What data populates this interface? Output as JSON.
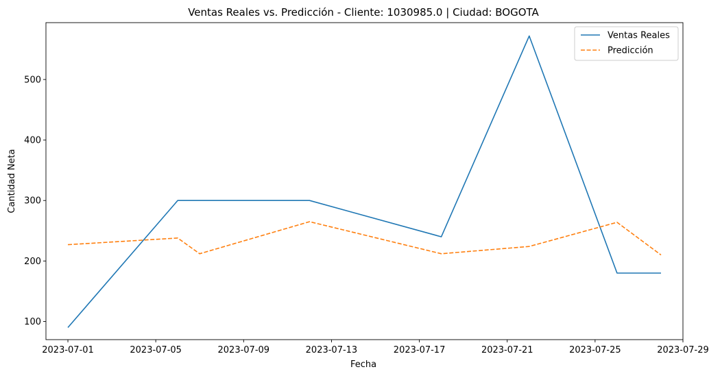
{
  "chart_data": {
    "type": "line",
    "title": "Ventas Reales vs. Predicción - Cliente: 1030985.0 | Ciudad: BOGOTA",
    "xlabel": "Fecha",
    "ylabel": "Cantidad Neta",
    "xlim": [
      "2023-06-30",
      "2023-07-29"
    ],
    "ylim": [
      70,
      594
    ],
    "x_ticks": [
      "2023-07-01",
      "2023-07-05",
      "2023-07-09",
      "2023-07-13",
      "2023-07-17",
      "2023-07-21",
      "2023-07-25",
      "2023-07-29"
    ],
    "y_ticks": [
      100,
      200,
      300,
      400,
      500
    ],
    "legend": "top-right",
    "grid": false,
    "series": [
      {
        "name": "Ventas Reales",
        "color": "#1f77b4",
        "dash": "solid",
        "points": [
          {
            "x": "2023-07-01",
            "y": 90
          },
          {
            "x": "2023-07-06",
            "y": 300
          },
          {
            "x": "2023-07-12",
            "y": 300
          },
          {
            "x": "2023-07-18",
            "y": 240
          },
          {
            "x": "2023-07-22",
            "y": 572
          },
          {
            "x": "2023-07-26",
            "y": 180
          },
          {
            "x": "2023-07-28",
            "y": 180
          }
        ]
      },
      {
        "name": "Predicción",
        "color": "#ff7f0e",
        "dash": "dashed",
        "points": [
          {
            "x": "2023-07-01",
            "y": 227
          },
          {
            "x": "2023-07-06",
            "y": 238
          },
          {
            "x": "2023-07-07",
            "y": 212
          },
          {
            "x": "2023-07-12",
            "y": 265
          },
          {
            "x": "2023-07-18",
            "y": 212
          },
          {
            "x": "2023-07-22",
            "y": 224
          },
          {
            "x": "2023-07-26",
            "y": 264
          },
          {
            "x": "2023-07-28",
            "y": 210
          }
        ]
      }
    ]
  }
}
